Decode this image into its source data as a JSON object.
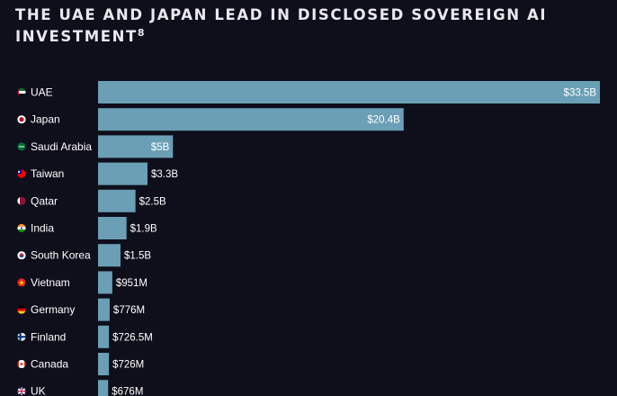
{
  "title": "THE UAE AND JAPAN LEAD IN DISCLOSED SOVEREIGN AI INVESTMENT",
  "title_footnote": "8",
  "colors": {
    "background": "#0f0f1c",
    "bar": "#6a9fb6",
    "text": "#ffffff"
  },
  "chart_data": {
    "type": "bar",
    "orientation": "horizontal",
    "unit": "USD",
    "categories": [
      "UAE",
      "Japan",
      "Saudi Arabia",
      "Taiwan",
      "Qatar",
      "India",
      "South Korea",
      "Vietnam",
      "Germany",
      "Finland",
      "Canada",
      "UK"
    ],
    "values": [
      33.5,
      20.4,
      5,
      3.3,
      2.5,
      1.9,
      1.5,
      0.951,
      0.776,
      0.7265,
      0.726,
      0.676
    ],
    "value_labels": [
      "$33.5B",
      "$20.4B",
      "$5B",
      "$3.3B",
      "$2.5B",
      "$1.9B",
      "$1.5B",
      "$951M",
      "$776M",
      "$726.5M",
      "$726M",
      "$676M"
    ],
    "flag_icons": [
      "uae-flag-icon",
      "japan-flag-icon",
      "saudi-arabia-flag-icon",
      "taiwan-flag-icon",
      "qatar-flag-icon",
      "india-flag-icon",
      "south-korea-flag-icon",
      "vietnam-flag-icon",
      "germany-flag-icon",
      "finland-flag-icon",
      "canada-flag-icon",
      "uk-flag-icon"
    ],
    "xlim": [
      0,
      33.5
    ],
    "grid": false,
    "legend": "none"
  }
}
